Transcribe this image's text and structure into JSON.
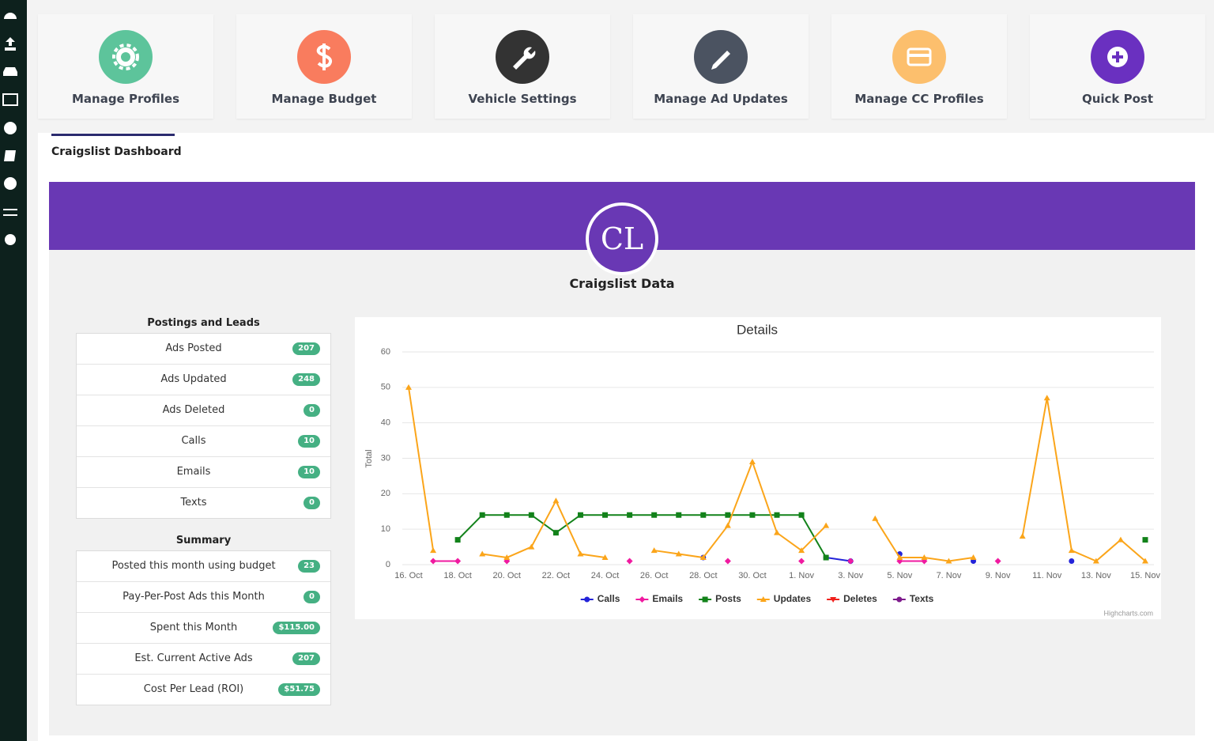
{
  "cards": [
    "Manage Profiles",
    "Manage Budget",
    "Vehicle Settings",
    "Manage Ad Updates",
    "Manage CC Profiles",
    "Quick Post"
  ],
  "tab": "Craigslist Dashboard",
  "banner": {
    "logo": "CL",
    "title": "Craigslist Data"
  },
  "postings": {
    "title": "Postings and Leads",
    "rows": [
      [
        "Ads Posted",
        "207"
      ],
      [
        "Ads Updated",
        "248"
      ],
      [
        "Ads Deleted",
        "0"
      ],
      [
        "Calls",
        "10"
      ],
      [
        "Emails",
        "10"
      ],
      [
        "Texts",
        "0"
      ]
    ]
  },
  "summary": {
    "title": "Summary",
    "rows": [
      [
        "Posted this month using budget",
        "23"
      ],
      [
        "Pay-Per-Post Ads this Month",
        "0"
      ],
      [
        "Spent this Month",
        "$115.00"
      ],
      [
        "Est. Current Active Ads",
        "207"
      ],
      [
        "Cost Per Lead (ROI)",
        "$51.75"
      ]
    ]
  },
  "chart_data": {
    "type": "line",
    "title": "Details",
    "y_label": "Total",
    "credit": "Highcharts.com",
    "grid": true,
    "legend": "bottom",
    "categories": [
      "16. Oct",
      null,
      "18. Oct",
      null,
      "20. Oct",
      null,
      "22. Oct",
      null,
      "24. Oct",
      null,
      "26. Oct",
      null,
      "28. Oct",
      null,
      "30. Oct",
      null,
      "1. Nov",
      null,
      "3. Nov",
      null,
      "5. Nov",
      null,
      "7. Nov",
      null,
      "9. Nov",
      null,
      "11. Nov",
      null,
      "13. Nov",
      null,
      "15. Nov"
    ],
    "ylim": [
      0,
      60
    ],
    "yticks": [
      0,
      10,
      20,
      30,
      40,
      50,
      60
    ],
    "series": [
      {
        "name": "Calls",
        "color": "#2323d9",
        "marker": "circle",
        "values": [
          null,
          null,
          null,
          null,
          null,
          null,
          null,
          null,
          null,
          null,
          null,
          null,
          2,
          null,
          null,
          null,
          null,
          2,
          1,
          null,
          3,
          null,
          null,
          1,
          null,
          null,
          null,
          1,
          null,
          null,
          null
        ]
      },
      {
        "name": "Emails",
        "color": "#f01aa0",
        "marker": "diamond",
        "values": [
          null,
          1,
          1,
          null,
          1,
          null,
          null,
          null,
          null,
          1,
          null,
          null,
          null,
          1,
          null,
          null,
          1,
          null,
          1,
          null,
          1,
          1,
          null,
          null,
          1,
          null,
          null,
          null,
          null,
          null,
          null
        ]
      },
      {
        "name": "Posts",
        "color": "#12821a",
        "marker": "square",
        "values": [
          null,
          null,
          7,
          14,
          14,
          14,
          9,
          14,
          14,
          14,
          14,
          14,
          14,
          14,
          14,
          14,
          14,
          2,
          null,
          null,
          null,
          null,
          null,
          null,
          null,
          null,
          null,
          null,
          null,
          null,
          7
        ]
      },
      {
        "name": "Updates",
        "color": "#fba51a",
        "marker": "triangle",
        "values": [
          50,
          4,
          null,
          3,
          2,
          5,
          18,
          3,
          2,
          null,
          4,
          3,
          2,
          11,
          29,
          9,
          4,
          11,
          null,
          13,
          2,
          2,
          1,
          2,
          null,
          8,
          47,
          4,
          1,
          7,
          1
        ]
      },
      {
        "name": "Deletes",
        "color": "#f0201c",
        "marker": "triangle-down",
        "values": [
          null,
          null,
          null,
          null,
          null,
          null,
          null,
          null,
          null,
          null,
          null,
          null,
          null,
          null,
          null,
          null,
          null,
          null,
          null,
          null,
          null,
          null,
          null,
          null,
          null,
          null,
          null,
          null,
          null,
          null,
          null
        ]
      },
      {
        "name": "Texts",
        "color": "#7d1a8c",
        "marker": "circle",
        "values": [
          null,
          null,
          null,
          null,
          null,
          null,
          null,
          null,
          null,
          null,
          null,
          null,
          null,
          null,
          null,
          null,
          null,
          null,
          null,
          null,
          null,
          null,
          null,
          null,
          null,
          null,
          null,
          null,
          null,
          null,
          null
        ]
      }
    ]
  }
}
